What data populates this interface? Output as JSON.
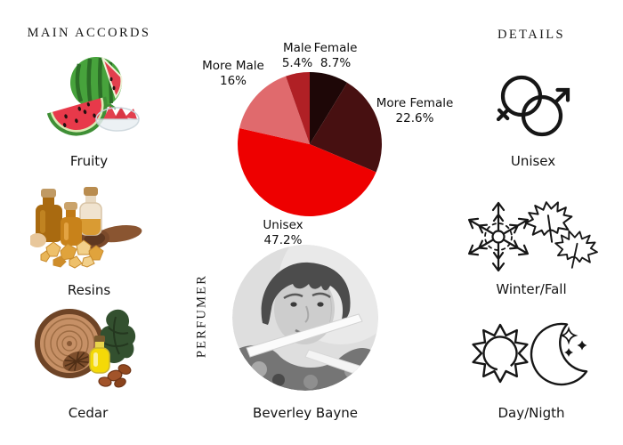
{
  "accords": {
    "header": "MAIN ACCORDS",
    "items": [
      {
        "label": "Fruity",
        "icon": "watermelon-illustration"
      },
      {
        "label": "Resins",
        "icon": "resin-bottles-illustration"
      },
      {
        "label": "Cedar",
        "icon": "cedar-wood-illustration"
      }
    ]
  },
  "details": {
    "header": "DETAILS",
    "items": [
      {
        "label": "Unisex",
        "icon": "unisex-gender-icon"
      },
      {
        "label": "Winter/Fall",
        "icon": "snowflake-maple-leaves-icon"
      },
      {
        "label": "Day/Nigth",
        "icon": "sun-moon-icon"
      }
    ]
  },
  "perfumer": {
    "header": "PERFUMER",
    "name": "Beverley Bayne",
    "photo": "black-and-white-portrait"
  },
  "chart_data": {
    "type": "pie",
    "title": "",
    "labels": [
      "Female",
      "More Female",
      "Unisex",
      "More Male",
      "Male"
    ],
    "values": [
      8.7,
      22.6,
      47.2,
      16,
      5.4
    ],
    "value_labels": [
      "8.7%",
      "22.6%",
      "47.2%",
      "16%",
      "5.4%"
    ],
    "colors": [
      "#1e0707",
      "#471011",
      "#ee0000",
      "#e06a6d",
      "#b02025"
    ],
    "start_angle_deg": 0,
    "direction": "clockwise",
    "legend_position": "labels-around-slices"
  }
}
